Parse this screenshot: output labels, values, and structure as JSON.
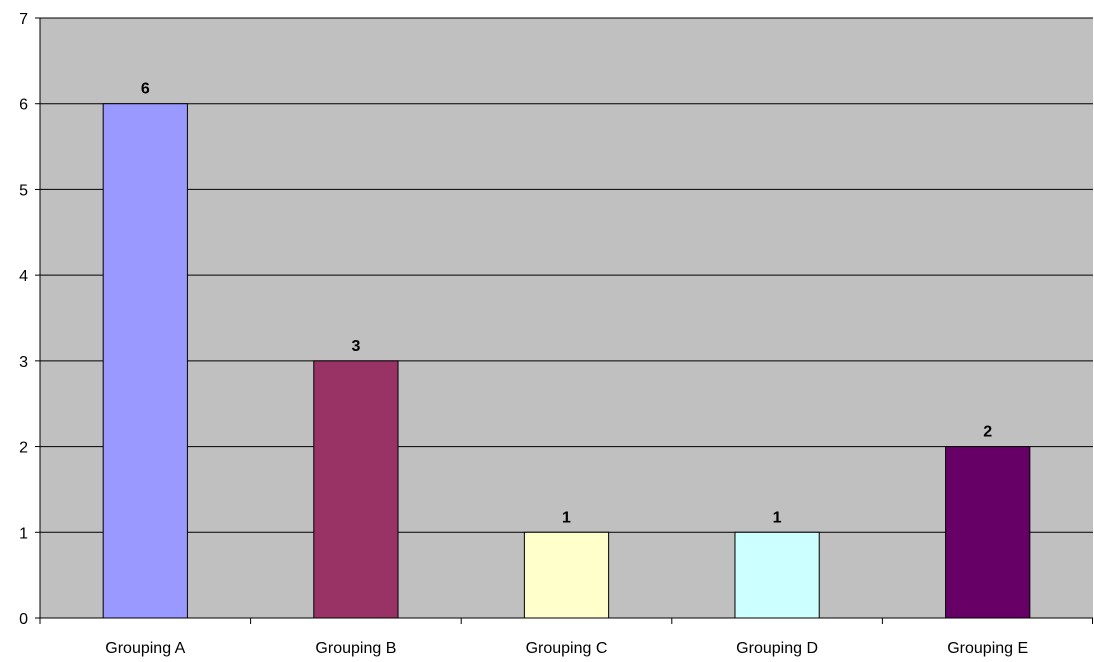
{
  "chart_data": {
    "type": "bar",
    "categories": [
      "Grouping A",
      "Grouping B",
      "Grouping C",
      "Grouping D",
      "Grouping E"
    ],
    "values": [
      6,
      3,
      1,
      1,
      2
    ],
    "data_labels": [
      "6",
      "3",
      "1",
      "1",
      "2"
    ],
    "bar_colors": [
      "#9999ff",
      "#993366",
      "#ffffcc",
      "#ccffff",
      "#660066"
    ],
    "plot_background": "#c0c0c0",
    "title": "",
    "xlabel": "",
    "ylabel": "",
    "ylim": [
      0,
      7
    ],
    "yticks": [
      0,
      1,
      2,
      3,
      4,
      5,
      6,
      7
    ],
    "ytick_labels": [
      "0",
      "1",
      "2",
      "3",
      "4",
      "5",
      "6",
      "7"
    ],
    "grid": true,
    "legend": "none"
  }
}
